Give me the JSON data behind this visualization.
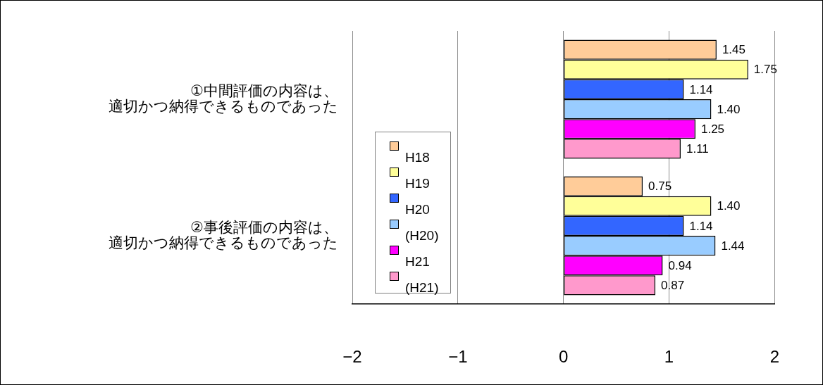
{
  "chart_data": {
    "type": "bar",
    "orientation": "horizontal",
    "categories": [
      "①中間評価の内容は、適切かつ納得できるものであった",
      "②事後評価の内容は、適切かつ納得できるものであった"
    ],
    "series": [
      {
        "name": "H18",
        "color": "#ffcc99",
        "values": [
          1.45,
          0.75
        ],
        "value_labels": [
          "1.45",
          "0.75"
        ]
      },
      {
        "name": "H19",
        "color": "#ffff99",
        "values": [
          1.75,
          1.4
        ],
        "value_labels": [
          "1.75",
          "1.40"
        ]
      },
      {
        "name": "H20",
        "color": "#3366ff",
        "values": [
          1.14,
          1.14
        ],
        "value_labels": [
          "1.14",
          "1.14"
        ]
      },
      {
        "name": "(H20)",
        "color": "#99ccff",
        "values": [
          1.4,
          1.44
        ],
        "value_labels": [
          "1.40",
          "1.44"
        ]
      },
      {
        "name": "H21",
        "color": "#ff00ff",
        "values": [
          1.25,
          0.94
        ],
        "value_labels": [
          "1.25",
          "0.94"
        ]
      },
      {
        "name": "(H21)",
        "color": "#ff99cc",
        "values": [
          1.11,
          0.87
        ],
        "value_labels": [
          "1.11",
          "0.87"
        ]
      }
    ],
    "xlim": [
      -2,
      2
    ],
    "xticks": [
      {
        "value": -2,
        "label": "−2"
      },
      {
        "value": -1,
        "label": "−1"
      },
      0,
      1,
      2
    ],
    "grid": "x",
    "legend": "left"
  }
}
